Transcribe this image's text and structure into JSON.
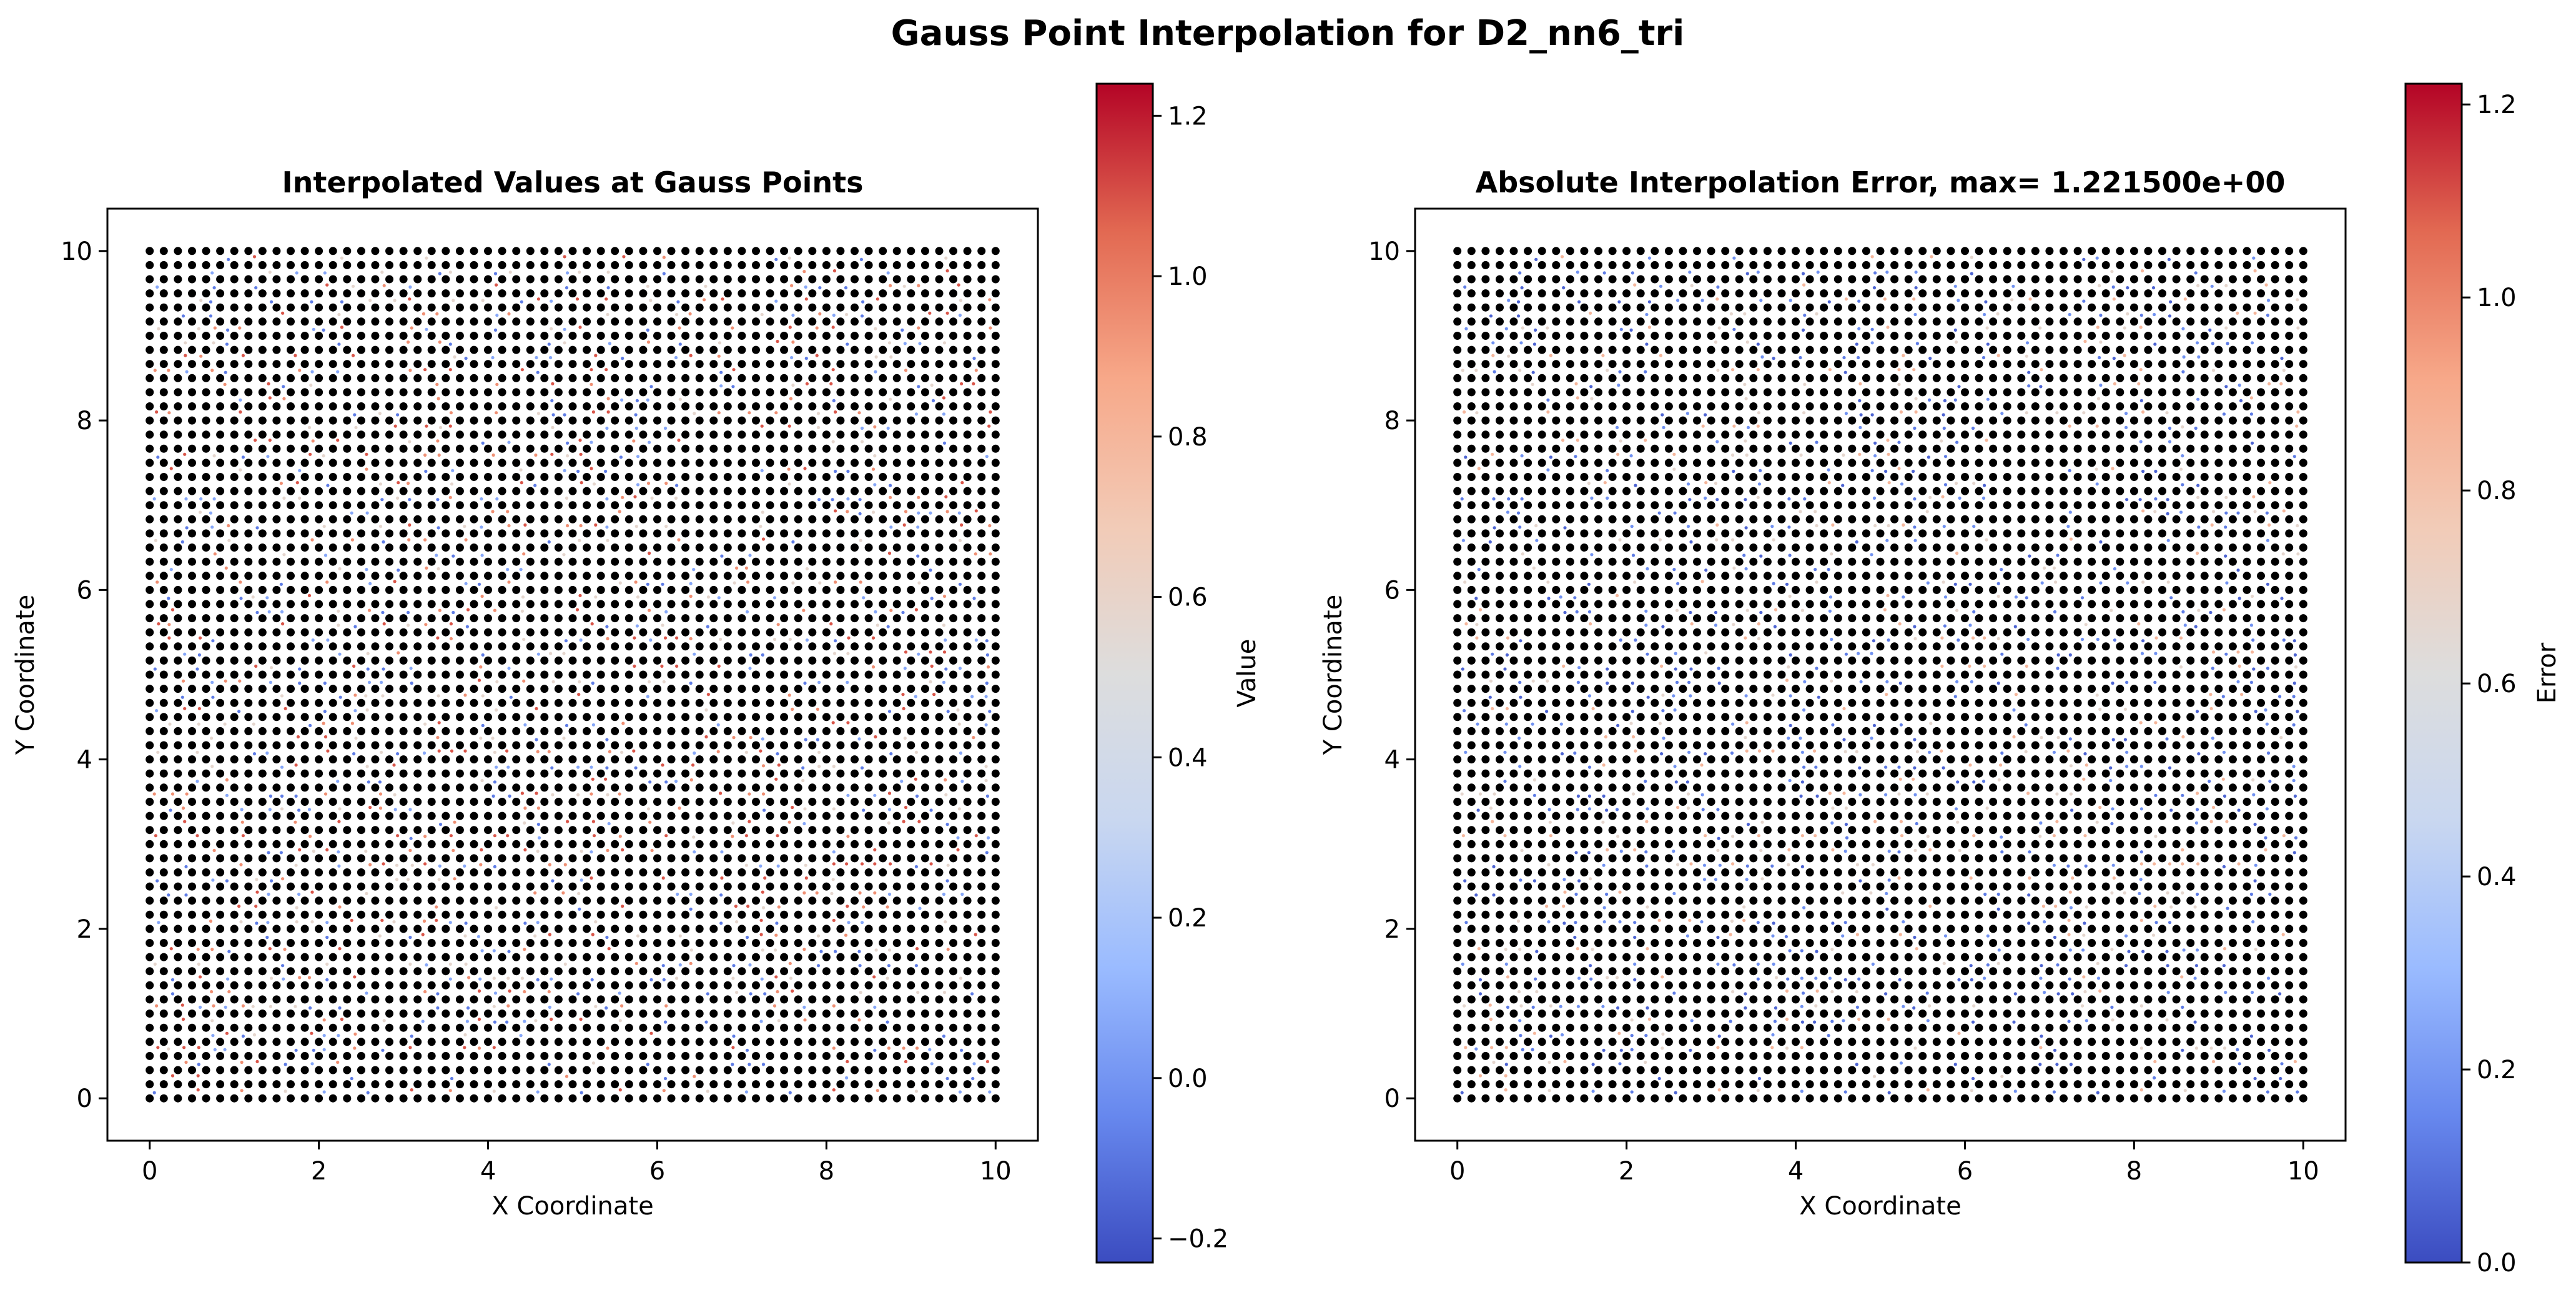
{
  "suptitle": "Gauss Point Interpolation for D2_nn6_tri",
  "colormap": {
    "name": "coolwarm",
    "stops": [
      "#3b4cc0",
      "#6788ee",
      "#9abbff",
      "#c9d7f0",
      "#dddddd",
      "#f2cbb7",
      "#f7a889",
      "#e26952",
      "#b40426"
    ]
  },
  "chart_data": [
    {
      "type": "scatter",
      "title": "Interpolated Values at Gauss Points",
      "xlabel": "X Coordinate",
      "ylabel": "Y Coordinate",
      "xlim": [
        -0.5,
        10.5
      ],
      "ylim": [
        -0.5,
        10.5
      ],
      "xticks": [
        0,
        2,
        4,
        6,
        8,
        10
      ],
      "yticks": [
        0,
        2,
        4,
        6,
        8,
        10
      ],
      "grid": false,
      "points": {
        "x_range": [
          0,
          10
        ],
        "y_range": [
          0,
          10
        ],
        "count_per_axis": 61,
        "marker_color": "#000000",
        "note": "Dense regular grid of black node markers with small coolwarm-colored Gauss point markers interleaved"
      },
      "colorbar": {
        "label": "Value",
        "range": [
          -0.23,
          1.24
        ],
        "ticks": [
          -0.2,
          0.0,
          0.2,
          0.4,
          0.6,
          0.8,
          1.0,
          1.2
        ],
        "tick_labels": [
          "−0.2",
          "0.0",
          "0.2",
          "0.4",
          "0.6",
          "0.8",
          "1.0",
          "1.2"
        ]
      }
    },
    {
      "type": "scatter",
      "title": "Absolute Interpolation Error, max= 1.221500e+00",
      "xlabel": "X Coordinate",
      "ylabel": "Y Coordinate",
      "xlim": [
        -0.5,
        10.5
      ],
      "ylim": [
        -0.5,
        10.5
      ],
      "xticks": [
        0,
        2,
        4,
        6,
        8,
        10
      ],
      "yticks": [
        0,
        2,
        4,
        6,
        8,
        10
      ],
      "grid": false,
      "points": {
        "x_range": [
          0,
          10
        ],
        "y_range": [
          0,
          10
        ],
        "count_per_axis": 61,
        "marker_color": "#000000",
        "note": "Dense regular grid of black node markers with small coolwarm-colored Gauss point markers interleaved"
      },
      "colorbar": {
        "label": "Error",
        "range": [
          0.0,
          1.2215
        ],
        "ticks": [
          0.0,
          0.2,
          0.4,
          0.6,
          0.8,
          1.0,
          1.2
        ],
        "tick_labels": [
          "0.0",
          "0.2",
          "0.4",
          "0.6",
          "0.8",
          "1.0",
          "1.2"
        ]
      }
    }
  ]
}
